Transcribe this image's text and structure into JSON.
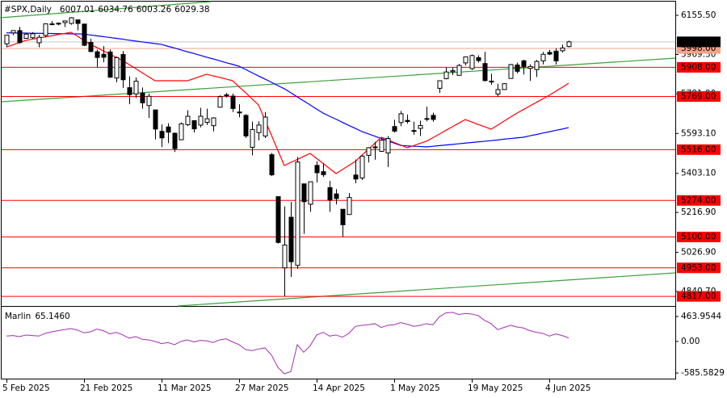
{
  "chart_data": [
    {
      "type": "candlestick",
      "title": "#SPX,Daily",
      "categories": [
        "5 Feb 2025",
        null,
        null,
        null,
        null,
        null,
        null,
        null,
        null,
        null,
        null,
        null,
        "21 Feb 2025",
        null,
        null,
        null,
        null,
        null,
        null,
        null,
        null,
        null,
        null,
        null,
        "11 Mar 2025",
        null,
        null,
        null,
        null,
        null,
        null,
        null,
        null,
        null,
        null,
        null,
        "27 Mar 2025",
        null,
        null,
        null,
        null,
        null,
        null,
        null,
        null,
        null,
        null,
        null,
        "14 Apr 2025",
        null,
        null,
        null,
        null,
        null,
        null,
        null,
        null,
        null,
        null,
        null,
        "1 May 2025",
        null,
        null,
        null,
        null,
        null,
        null,
        null,
        null,
        null,
        null,
        null,
        "19 May 2025",
        null,
        null,
        null,
        null,
        null,
        null,
        null,
        null,
        null,
        null,
        null,
        "4 Jun 2025",
        null,
        null,
        null
      ],
      "open": [
        6020,
        6072,
        6083,
        6046,
        6049,
        6025,
        6060,
        6115,
        6114,
        6121,
        6117,
        6134,
        6114,
        6027,
        5982,
        5970,
        5981,
        5857,
        5969,
        5811,
        5781,
        5785,
        5726,
        5705,
        5603,
        5624,
        5594,
        5563,
        5635,
        5654,
        5633,
        5646,
        5630,
        5718,
        5775,
        5771,
        5695,
        5679,
        5527,
        5597,
        5581,
        5492,
        5292,
        4953,
        5194,
        4965,
        5353,
        5256,
        5441,
        5411,
        5335,
        5305,
        5232,
        5207,
        5395,
        5381,
        5489,
        5529,
        5508,
        5500,
        5626,
        5645,
        5655,
        5605,
        5617,
        5663,
        5679,
        5808,
        5854,
        5887,
        5870,
        5929,
        5902,
        5954,
        5926,
        5842,
        5781,
        5802,
        5855,
        5919,
        5939,
        5903,
        5897,
        5939,
        5979,
        5985,
        5987,
        6007.01
      ],
      "high": [
        6062,
        6084,
        6101,
        6073,
        6076,
        6063,
        6116,
        6128,
        6122,
        6130,
        6147,
        6134,
        6115,
        6044,
        5992,
        6009,
        5993,
        5959,
        5986,
        5865,
        5860,
        5812,
        5783,
        5705,
        5636,
        5642,
        5597,
        5645,
        5704,
        5654,
        5715,
        5711,
        5670,
        5775,
        5786,
        5783,
        5732,
        5685,
        5650,
        5651,
        5695,
        5500,
        5292,
        5246,
        5267,
        5481,
        5353,
        5362,
        5460,
        5450,
        5367,
        5328,
        5232,
        5309,
        5469,
        5489,
        5528,
        5553,
        5571,
        5581,
        5658,
        5700,
        5683,
        5649,
        5654,
        5721,
        5692,
        5845,
        5907,
        5907,
        5924,
        5959,
        5969,
        5965,
        5982,
        5878,
        5830,
        5832,
        5924,
        5930,
        5944,
        5922,
        5943,
        5981,
        5991,
        5999,
        6016,
        6034.76
      ],
      "low": [
        6007,
        6061,
        6020,
        6044,
        6043,
        6003,
        6051,
        6108,
        6108,
        6100,
        6111,
        6084,
        6009,
        5982,
        5908,
        5932,
        5858,
        5837,
        5810,
        5732,
        5762,
        5711,
        5667,
        5565,
        5528,
        5547,
        5505,
        5563,
        5628,
        5597,
        5622,
        5633,
        5603,
        5718,
        5764,
        5695,
        5670,
        5572,
        5489,
        5560,
        5571,
        5390,
        5069,
        4817,
        4910,
        4949,
        5115,
        5220,
        5359,
        5386,
        5220,
        5255,
        5101,
        5207,
        5356,
        5371,
        5455,
        5468,
        5506,
        5433,
        5597,
        5628,
        5640,
        5587,
        5581,
        5651,
        5649,
        5786,
        5851,
        5871,
        5868,
        5917,
        5895,
        5930,
        5841,
        5825,
        5768,
        5800,
        5855,
        5879,
        5874,
        5843,
        5862,
        5922,
        5966,
        5921,
        5978,
        6003.26
      ],
      "close": [
        6061,
        6083,
        6026,
        6066,
        6068,
        6051,
        6115,
        6114,
        6118,
        6129,
        6144,
        6117,
        6013,
        5983,
        5955,
        5956,
        5861,
        5954,
        5849,
        5778,
        5842,
        5739,
        5770,
        5614,
        5572,
        5599,
        5521,
        5639,
        5675,
        5615,
        5675,
        5663,
        5667,
        5768,
        5777,
        5712,
        5693,
        5581,
        5612,
        5633,
        5671,
        5396,
        5074,
        5062,
        4982,
        5457,
        5268,
        5363,
        5406,
        5397,
        5276,
        5283,
        5158,
        5288,
        5376,
        5485,
        5525,
        5529,
        5561,
        5569,
        5604,
        5687,
        5650,
        5607,
        5631,
        5664,
        5660,
        5844,
        5886,
        5892,
        5917,
        5958,
        5964,
        5940,
        5845,
        5842,
        5802,
        5830,
        5921,
        5889,
        5912,
        5912,
        5936,
        5970,
        5971,
        5939,
        6000,
        6029.38
      ],
      "up_color": "#ffffff",
      "down_color": "#000000",
      "moving_averages": [
        {
          "color": "#0000ff",
          "values": [
            6072,
            6072,
            6071,
            6071,
            6070,
            6070,
            6069,
            6069,
            6068,
            6068,
            6067,
            6067,
            6066,
            6062,
            6058,
            6054,
            6050,
            6046,
            6042,
            6037,
            6033,
            6029,
            6025,
            6021,
            6017,
            6008,
            6000,
            5991,
            5982,
            5974,
            5965,
            5956,
            5948,
            5939,
            5930,
            5922,
            5913,
            5898,
            5882,
            5867,
            5852,
            5837,
            5821,
            5806,
            5787,
            5767,
            5748,
            5729,
            5709,
            5690,
            5675,
            5661,
            5646,
            5631,
            5617,
            5602,
            5591,
            5580,
            5569,
            5558,
            5547,
            5536,
            5534,
            5532,
            5531,
            5529,
            5532,
            5535,
            5538,
            5541,
            5544,
            5547,
            5550,
            5553,
            5556,
            5559,
            5562,
            5566,
            5569,
            5572,
            5575,
            5582,
            5588,
            5595,
            5601,
            5608,
            5614,
            5621
          ]
        },
        {
          "color": "#ff0000",
          "values": [
            6005,
            6015,
            6026,
            6036,
            6042,
            6047,
            6053,
            6058,
            6064,
            6069,
            6075,
            6056,
            6036,
            6017,
            6002,
            5986,
            5971,
            5955,
            5940,
            5921,
            5902,
            5882,
            5863,
            5844,
            5844,
            5844,
            5844,
            5844,
            5844,
            5854,
            5865,
            5875,
            5867,
            5860,
            5852,
            5844,
            5815,
            5787,
            5758,
            5729,
            5657,
            5585,
            5512,
            5440,
            5455,
            5469,
            5484,
            5498,
            5474,
            5450,
            5426,
            5402,
            5421,
            5441,
            5460,
            5489,
            5518,
            5546,
            5575,
            5563,
            5550,
            5538,
            5525,
            5535,
            5546,
            5556,
            5573,
            5590,
            5608,
            5625,
            5642,
            5659,
            5648,
            5636,
            5625,
            5613,
            5632,
            5652,
            5671,
            5690,
            5707,
            5724,
            5741,
            5758,
            5775,
            5794,
            5813,
            5832
          ]
        }
      ],
      "ylim": [
        4775.3,
        6228.6
      ],
      "yticks": [
        {
          "value": 6155.5,
          "label": "6155.50"
        },
        {
          "value": 5969.3,
          "label": "5969.30"
        },
        {
          "value": 5781.9,
          "label": "5781.90"
        },
        {
          "value": 5593.1,
          "label": "5593.10"
        },
        {
          "value": 5403.1,
          "label": "5403.10"
        },
        {
          "value": 5216.9,
          "label": "5216.90"
        },
        {
          "value": 5026.9,
          "label": "5026.90"
        },
        {
          "value": 4840.7,
          "label": "4840.70"
        }
      ],
      "levels": [
        {
          "value": 5908,
          "label": "5908.00"
        },
        {
          "value": 5769,
          "label": "5769.00"
        },
        {
          "value": 5516,
          "label": "5516.00"
        },
        {
          "value": 5274,
          "label": "5274.00"
        },
        {
          "value": 5100,
          "label": "5100.00"
        },
        {
          "value": 4953,
          "label": "4953.00"
        },
        {
          "value": 4817,
          "label": "4817.00"
        }
      ],
      "level_color": "#ff0000",
      "reference_line": {
        "value": 5998,
        "label": "5998.00",
        "color": "#f4a38a"
      }
    },
    {
      "type": "line",
      "title": "Marlin",
      "color": "#a030b0",
      "values": [
        100,
        110,
        90,
        120,
        110,
        100,
        150,
        180,
        200,
        220,
        240,
        210,
        160,
        180,
        230,
        200,
        140,
        170,
        120,
        60,
        90,
        40,
        30,
        0,
        -40,
        -20,
        -60,
        0,
        30,
        -10,
        20,
        10,
        -20,
        30,
        50,
        -10,
        -60,
        -150,
        -170,
        -140,
        -120,
        -250,
        -480,
        -600,
        -560,
        -60,
        -200,
        -80,
        120,
        170,
        100,
        120,
        80,
        150,
        280,
        300,
        310,
        330,
        260,
        300,
        310,
        350,
        320,
        280,
        300,
        330,
        310,
        460,
        530,
        540,
        500,
        520,
        510,
        480,
        390,
        330,
        220,
        260,
        300,
        270,
        250,
        200,
        170,
        150,
        100,
        140,
        110,
        65.146
      ],
      "value_labels": [
        null,
        null,
        null,
        null,
        null,
        null,
        null,
        null,
        null,
        null,
        null,
        null,
        null,
        null,
        null,
        null,
        null,
        null,
        null,
        null,
        null,
        null,
        null,
        null,
        null,
        null,
        null,
        null,
        null,
        null,
        null,
        null,
        null,
        null,
        null,
        null,
        null,
        null,
        null,
        null,
        null,
        null,
        null,
        null,
        null,
        null,
        null,
        null,
        null,
        null,
        null,
        null,
        null,
        null,
        null,
        null,
        null,
        null,
        null,
        null,
        null,
        null,
        null,
        null,
        null,
        null,
        null,
        null,
        null,
        null,
        null,
        null,
        null,
        null,
        null,
        null,
        null,
        null,
        null,
        null,
        null,
        null,
        null,
        null,
        null,
        null,
        null,
        "65.1460"
      ],
      "ylim": [
        -705,
        629
      ],
      "yticks": [
        463.9544,
        {
          "value": 0,
          "label": "0.00"
        },
        -585.5829
      ]
    }
  ]
}
